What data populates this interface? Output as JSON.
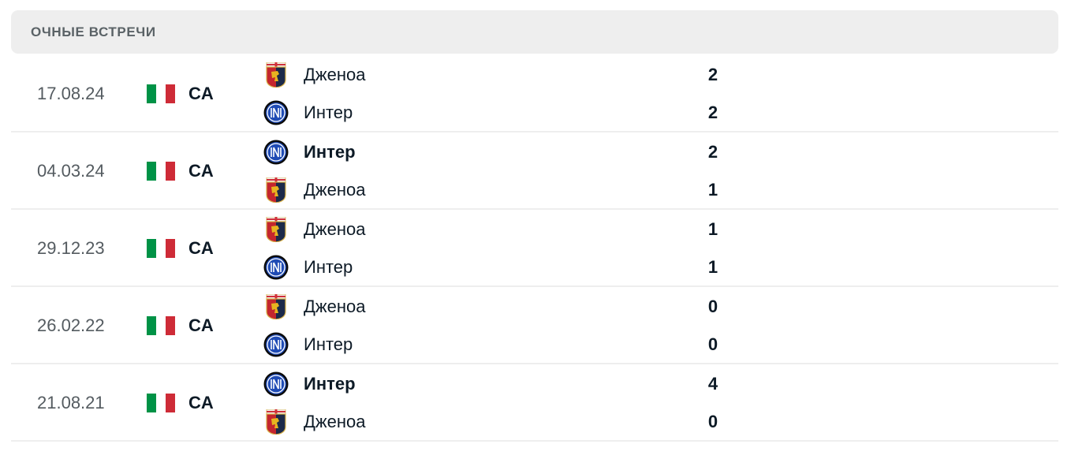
{
  "header": {
    "title": "ОЧНЫЕ ВСТРЕЧИ"
  },
  "flag_colors": [
    "#009246",
    "#ffffff",
    "#ce2b37"
  ],
  "matches": [
    {
      "date": "17.08.24",
      "competition": "CA",
      "home": {
        "name": "Дженоа",
        "logo": "genoa-crest",
        "score": "2",
        "winner": false
      },
      "away": {
        "name": "Интер",
        "logo": "inter-crest",
        "score": "2",
        "winner": false
      }
    },
    {
      "date": "04.03.24",
      "competition": "CA",
      "home": {
        "name": "Интер",
        "logo": "inter-crest",
        "score": "2",
        "winner": true
      },
      "away": {
        "name": "Дженоа",
        "logo": "genoa-crest",
        "score": "1",
        "winner": false
      }
    },
    {
      "date": "29.12.23",
      "competition": "CA",
      "home": {
        "name": "Дженоа",
        "logo": "genoa-crest",
        "score": "1",
        "winner": false
      },
      "away": {
        "name": "Интер",
        "logo": "inter-crest",
        "score": "1",
        "winner": false
      }
    },
    {
      "date": "26.02.22",
      "competition": "CA",
      "home": {
        "name": "Дженоа",
        "logo": "genoa-crest",
        "score": "0",
        "winner": false
      },
      "away": {
        "name": "Интер",
        "logo": "inter-crest",
        "score": "0",
        "winner": false
      }
    },
    {
      "date": "21.08.21",
      "competition": "CA",
      "home": {
        "name": "Интер",
        "logo": "inter-crest",
        "score": "4",
        "winner": true
      },
      "away": {
        "name": "Дженоа",
        "logo": "genoa-crest",
        "score": "0",
        "winner": false
      }
    }
  ]
}
